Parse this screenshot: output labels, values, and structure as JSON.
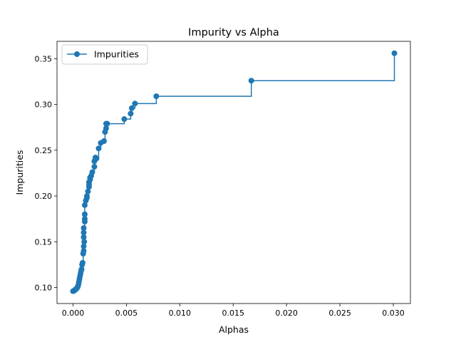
{
  "chart_data": {
    "type": "line",
    "drawstyle": "steps-post",
    "marker": "circle",
    "title": "Impurity vs Alpha",
    "xlabel": "Alphas",
    "ylabel": "Impurities",
    "xlim": [
      -0.0015,
      0.0316
    ],
    "ylim": [
      0.0825,
      0.369
    ],
    "xticks": [
      0.0,
      0.005,
      0.01,
      0.015,
      0.02,
      0.025,
      0.03
    ],
    "xtick_labels": [
      "0.000",
      "0.005",
      "0.010",
      "0.015",
      "0.020",
      "0.025",
      "0.030"
    ],
    "yticks": [
      0.1,
      0.15,
      0.2,
      0.25,
      0.3,
      0.35
    ],
    "ytick_labels": [
      "0.10",
      "0.15",
      "0.20",
      "0.25",
      "0.30",
      "0.35"
    ],
    "grid": false,
    "legend": "upper-left",
    "colors": {
      "series": "#1f77b4",
      "axes": "#000000",
      "background": "#ffffff"
    },
    "series": [
      {
        "name": "Impurities",
        "x": [
          0.0,
          0.0001,
          0.00015,
          0.0002,
          0.00025,
          0.0003,
          0.00035,
          0.0004,
          0.00045,
          0.0005,
          0.00055,
          0.0006,
          0.00065,
          0.0007,
          0.00075,
          0.0008,
          0.00085,
          0.0009,
          0.00095,
          0.001,
          0.001,
          0.00105,
          0.001,
          0.001,
          0.001,
          0.0011,
          0.0011,
          0.0011,
          0.0011,
          0.0012,
          0.0013,
          0.0013,
          0.0014,
          0.0015,
          0.0015,
          0.0015,
          0.0016,
          0.0016,
          0.0017,
          0.0018,
          0.002,
          0.002,
          0.0021,
          0.0022,
          0.0024,
          0.0026,
          0.0029,
          0.003,
          0.0031,
          0.0031,
          0.0032,
          0.0048,
          0.0054,
          0.0055,
          0.0058,
          0.0078,
          0.0167,
          0.0301
        ],
        "y": [
          0.096,
          0.0965,
          0.097,
          0.0975,
          0.098,
          0.0985,
          0.099,
          0.1,
          0.101,
          0.103,
          0.106,
          0.109,
          0.112,
          0.115,
          0.118,
          0.12,
          0.125,
          0.127,
          0.137,
          0.14,
          0.145,
          0.15,
          0.155,
          0.16,
          0.165,
          0.172,
          0.175,
          0.18,
          0.19,
          0.195,
          0.198,
          0.2,
          0.205,
          0.21,
          0.212,
          0.215,
          0.218,
          0.22,
          0.222,
          0.226,
          0.232,
          0.238,
          0.242,
          0.241,
          0.252,
          0.258,
          0.26,
          0.27,
          0.274,
          0.279,
          0.279,
          0.284,
          0.29,
          0.296,
          0.301,
          0.309,
          0.326,
          0.356
        ]
      }
    ]
  }
}
